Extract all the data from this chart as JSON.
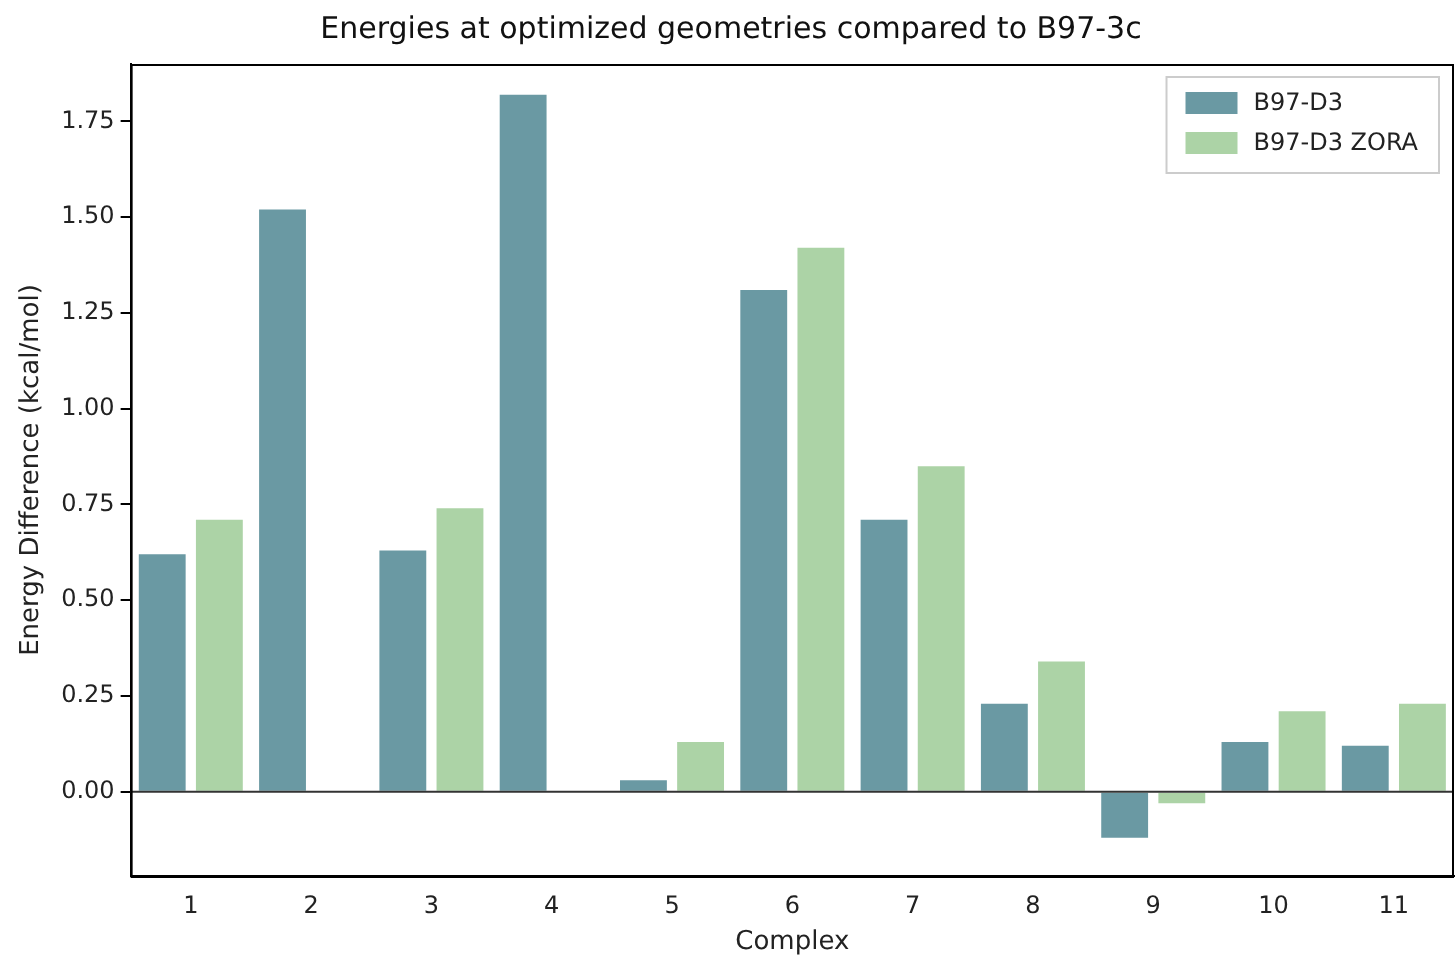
{
  "chart_data": {
    "type": "bar",
    "title": "Energies at optimized geometries compared to B97-3c",
    "xlabel": "Complex",
    "ylabel": "Energy Difference (kcal/mol)",
    "categories": [
      "1",
      "2",
      "3",
      "4",
      "5",
      "6",
      "7",
      "8",
      "9",
      "10",
      "11"
    ],
    "series": [
      {
        "name": "B97-D3",
        "color": "#6a99a3",
        "values": [
          0.62,
          1.52,
          0.63,
          1.82,
          0.03,
          1.31,
          0.71,
          0.23,
          -0.12,
          0.13,
          0.12
        ]
      },
      {
        "name": "B97-D3 ZORA",
        "color": "#acd3a6",
        "values": [
          0.71,
          null,
          0.74,
          null,
          0.13,
          1.42,
          0.85,
          0.34,
          -0.03,
          0.21,
          0.23
        ]
      }
    ],
    "ylim": [
      -0.22,
      1.9
    ],
    "yticks": [
      {
        "value": 0,
        "label": "0.00"
      },
      {
        "value": 0.25,
        "label": "0.25"
      },
      {
        "value": 0.5,
        "label": "0.50"
      },
      {
        "value": 0.75,
        "label": "0.75"
      },
      {
        "value": 1,
        "label": "1.00"
      },
      {
        "value": 1.25,
        "label": "1.25"
      },
      {
        "value": 1.5,
        "label": "1.50"
      },
      {
        "value": 1.75,
        "label": "1.75"
      }
    ],
    "ref_lines": [
      {
        "axis": "y",
        "value": 0,
        "color": "#333333"
      }
    ],
    "legend": "top right",
    "grid": false
  }
}
